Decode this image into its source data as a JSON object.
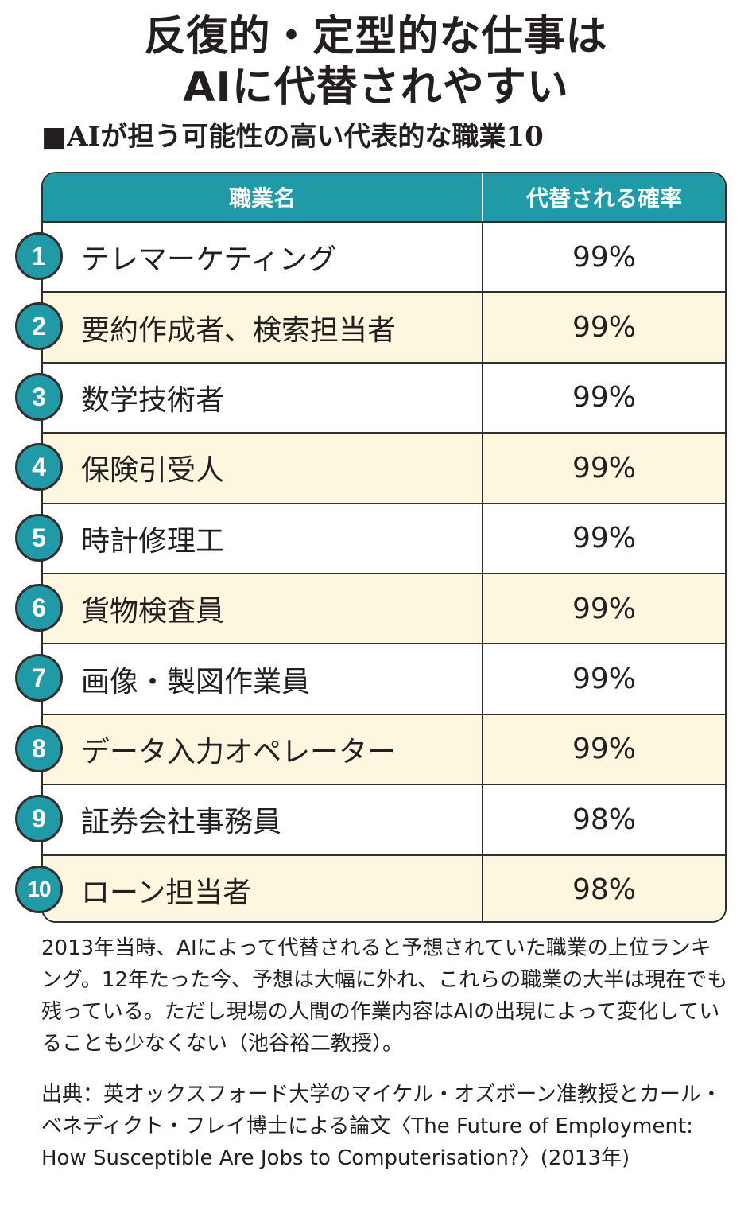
{
  "title": {
    "line1": "反復的・定型的な仕事は",
    "line2": "AIに代替されやすい"
  },
  "subtitle": "■AIが担う可能性の高い代表的な職業10",
  "table": {
    "headers": {
      "job": "職業名",
      "probability": "代替される確率"
    },
    "rows": [
      {
        "rank": "1",
        "job": "テレマーケティング",
        "probability": "99%"
      },
      {
        "rank": "2",
        "job": "要約作成者、検索担当者",
        "probability": "99%"
      },
      {
        "rank": "3",
        "job": "数学技術者",
        "probability": "99%"
      },
      {
        "rank": "4",
        "job": "保険引受人",
        "probability": "99%"
      },
      {
        "rank": "5",
        "job": "時計修理工",
        "probability": "99%"
      },
      {
        "rank": "6",
        "job": "貨物検査員",
        "probability": "99%"
      },
      {
        "rank": "7",
        "job": "画像・製図作業員",
        "probability": "99%"
      },
      {
        "rank": "8",
        "job": "データ入力オペレーター",
        "probability": "99%"
      },
      {
        "rank": "9",
        "job": "証券会社事務員",
        "probability": "98%"
      },
      {
        "rank": "10",
        "job": "ローン担当者",
        "probability": "98%"
      }
    ]
  },
  "note": "2013年当時、AIによって代替されると予想されていた職業の上位ランキング。12年たった今、予想は大幅に外れ、これらの職業の大半は現在でも残っている。ただし現場の人間の作業内容はAIの出現によって変化していることも少なくない（池谷裕二教授）。",
  "source": "出典：英オックスフォード大学のマイケル・オズボーン准教授とカール・ベネディクト・フレイ博士による論文〈The Future of Employment: How Susceptible Are Jobs to Computerisation?〉(2013年)",
  "colors": {
    "header_bg": "#1f9aa6",
    "alt_row_bg": "#fcf7de",
    "border": "#2f2f2f"
  }
}
